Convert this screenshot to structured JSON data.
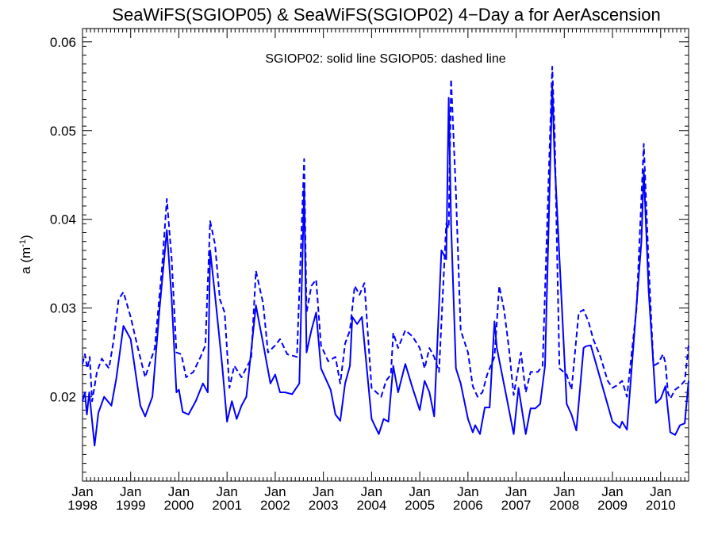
{
  "chart_data": {
    "type": "line",
    "title": "SeaWiFS(SGIOP05) & SeaWiFS(SGIOP02) 4−Day a for AerAscension",
    "ylabel": "a (m",
    "ylabel_sup": "-1",
    "ylabel_close": ")",
    "legend_text": "SGIOP02: solid line   SGIOP05: dashed line",
    "xlim": [
      1998.0,
      2010.58
    ],
    "ylim": [
      0.0105,
      0.0615
    ],
    "yticks": [
      0.02,
      0.03,
      0.04,
      0.05,
      0.06
    ],
    "ytick_labels": [
      "0.02",
      "0.03",
      "0.04",
      "0.05",
      "0.06"
    ],
    "xticks": [
      {
        "value": 1998,
        "month": "Jan",
        "year": "1998"
      },
      {
        "value": 1999,
        "month": "Jan",
        "year": "1999"
      },
      {
        "value": 2000,
        "month": "Jan",
        "year": "2000"
      },
      {
        "value": 2001,
        "month": "Jan",
        "year": "2001"
      },
      {
        "value": 2002,
        "month": "Jan",
        "year": "2002"
      },
      {
        "value": 2003,
        "month": "Jan",
        "year": "2003"
      },
      {
        "value": 2004,
        "month": "Jan",
        "year": "2004"
      },
      {
        "value": 2005,
        "month": "Jan",
        "year": "2005"
      },
      {
        "value": 2006,
        "month": "Jan",
        "year": "2006"
      },
      {
        "value": 2007,
        "month": "Jan",
        "year": "2007"
      },
      {
        "value": 2008,
        "month": "Jan",
        "year": "2008"
      },
      {
        "value": 2009,
        "month": "Jan",
        "year": "2009"
      },
      {
        "value": 2010,
        "month": "Jan",
        "year": "2010"
      }
    ],
    "line_color": "#0000ff",
    "series": [
      {
        "style": "solid",
        "x": [
          1998.0,
          1998.05,
          1998.09,
          1998.14,
          1998.25,
          1998.33,
          1998.45,
          1998.6,
          1998.7,
          1998.85,
          1999.0,
          1999.2,
          1999.3,
          1999.45,
          1999.6,
          1999.75,
          1999.85,
          1999.95,
          2000.0,
          2000.08,
          2000.2,
          2000.35,
          2000.5,
          2000.6,
          2000.65,
          2000.75,
          2000.9,
          2001.0,
          2001.1,
          2001.2,
          2001.3,
          2001.4,
          2001.6,
          2001.75,
          2001.9,
          2002.0,
          2002.1,
          2002.2,
          2002.35,
          2002.5,
          2002.6,
          2002.65,
          2002.75,
          2002.85,
          2002.95,
          2003.15,
          2003.25,
          2003.35,
          2003.45,
          2003.55,
          2003.6,
          2003.7,
          2003.8,
          2004.0,
          2004.15,
          2004.25,
          2004.35,
          2004.45,
          2004.55,
          2004.7,
          2004.85,
          2005.0,
          2005.1,
          2005.2,
          2005.3,
          2005.45,
          2005.55,
          2005.6,
          2005.65,
          2005.75,
          2005.85,
          2006.0,
          2006.1,
          2006.15,
          2006.25,
          2006.35,
          2006.45,
          2006.55,
          2006.6,
          2006.8,
          2006.95,
          2007.05,
          2007.2,
          2007.3,
          2007.4,
          2007.5,
          2007.6,
          2007.75,
          2007.8,
          2008.05,
          2008.15,
          2008.25,
          2008.4,
          2008.45,
          2008.55,
          2009.0,
          2009.15,
          2009.2,
          2009.3,
          2009.6,
          2009.65,
          2009.75,
          2009.9,
          2010.0,
          2010.1,
          2010.2,
          2010.3,
          2010.4,
          2010.5,
          2010.58
        ],
        "y": [
          0.0195,
          0.0205,
          0.018,
          0.0205,
          0.0145,
          0.0182,
          0.02,
          0.019,
          0.022,
          0.028,
          0.0265,
          0.019,
          0.0178,
          0.02,
          0.03,
          0.0388,
          0.031,
          0.0205,
          0.0208,
          0.0183,
          0.018,
          0.0195,
          0.0215,
          0.0205,
          0.0365,
          0.0315,
          0.0235,
          0.0172,
          0.0195,
          0.0175,
          0.019,
          0.02,
          0.0303,
          0.026,
          0.0215,
          0.0225,
          0.0205,
          0.0205,
          0.0203,
          0.0215,
          0.0435,
          0.025,
          0.0275,
          0.0295,
          0.0232,
          0.0208,
          0.018,
          0.0173,
          0.0215,
          0.0235,
          0.029,
          0.0282,
          0.029,
          0.0175,
          0.0158,
          0.0175,
          0.0172,
          0.0235,
          0.0205,
          0.0237,
          0.021,
          0.0185,
          0.0218,
          0.0205,
          0.0178,
          0.0365,
          0.0355,
          0.0537,
          0.0395,
          0.0232,
          0.0215,
          0.0175,
          0.016,
          0.0168,
          0.0158,
          0.0188,
          0.0188,
          0.0285,
          0.0255,
          0.02,
          0.0158,
          0.021,
          0.0158,
          0.0187,
          0.0187,
          0.0192,
          0.0235,
          0.055,
          0.0465,
          0.0192,
          0.018,
          0.0162,
          0.0255,
          0.0257,
          0.0258,
          0.0172,
          0.0165,
          0.0172,
          0.0163,
          0.0375,
          0.0455,
          0.032,
          0.0193,
          0.0198,
          0.0212,
          0.016,
          0.0157,
          0.0168,
          0.017,
          0.0218
        ]
      },
      {
        "style": "dashed",
        "x": [
          1998.0,
          1998.05,
          1998.1,
          1998.15,
          1998.2,
          1998.3,
          1998.4,
          1998.55,
          1998.65,
          1998.75,
          1998.85,
          1999.0,
          1999.15,
          1999.3,
          1999.5,
          1999.65,
          1999.75,
          1999.85,
          1999.95,
          2000.05,
          2000.15,
          2000.3,
          2000.45,
          2000.55,
          2000.65,
          2000.75,
          2000.85,
          2000.95,
          2001.05,
          2001.15,
          2001.3,
          2001.5,
          2001.6,
          2001.75,
          2001.85,
          2002.0,
          2002.1,
          2002.25,
          2002.45,
          2002.6,
          2002.65,
          2002.75,
          2002.85,
          2002.95,
          2003.1,
          2003.25,
          2003.35,
          2003.45,
          2003.55,
          2003.65,
          2003.75,
          2003.85,
          2004.0,
          2004.1,
          2004.2,
          2004.3,
          2004.4,
          2004.45,
          2004.55,
          2004.7,
          2004.85,
          2005.0,
          2005.1,
          2005.2,
          2005.3,
          2005.4,
          2005.55,
          2005.6,
          2005.65,
          2005.75,
          2005.85,
          2006.0,
          2006.1,
          2006.2,
          2006.3,
          2006.4,
          2006.55,
          2006.65,
          2006.75,
          2006.85,
          2006.95,
          2007.1,
          2007.2,
          2007.3,
          2007.45,
          2007.55,
          2007.75,
          2007.8,
          2007.9,
          2008.05,
          2008.15,
          2008.3,
          2008.4,
          2008.5,
          2008.6,
          2008.75,
          2008.9,
          2009.0,
          2009.1,
          2009.2,
          2009.3,
          2009.5,
          2009.65,
          2009.75,
          2009.85,
          2009.95,
          2010.05,
          2010.1,
          2010.15,
          2010.2,
          2010.3,
          2010.4,
          2010.5,
          2010.58
        ],
        "y": [
          0.0237,
          0.0248,
          0.0232,
          0.0245,
          0.0195,
          0.0228,
          0.0243,
          0.0232,
          0.0265,
          0.031,
          0.0318,
          0.029,
          0.0255,
          0.0222,
          0.0255,
          0.0345,
          0.0423,
          0.0355,
          0.025,
          0.0248,
          0.0222,
          0.0228,
          0.0245,
          0.0258,
          0.0398,
          0.0372,
          0.031,
          0.0295,
          0.021,
          0.0235,
          0.0222,
          0.0243,
          0.0342,
          0.0305,
          0.025,
          0.0258,
          0.0265,
          0.0248,
          0.0245,
          0.0468,
          0.0295,
          0.0325,
          0.0332,
          0.0258,
          0.024,
          0.0245,
          0.0215,
          0.026,
          0.0275,
          0.0325,
          0.0315,
          0.0328,
          0.021,
          0.0205,
          0.02,
          0.0218,
          0.0225,
          0.0272,
          0.0255,
          0.0275,
          0.0268,
          0.0255,
          0.0232,
          0.0255,
          0.0245,
          0.0228,
          0.0395,
          0.039,
          0.0558,
          0.043,
          0.0275,
          0.025,
          0.0212,
          0.02,
          0.0205,
          0.0225,
          0.0245,
          0.0325,
          0.0298,
          0.0255,
          0.0202,
          0.025,
          0.0205,
          0.0228,
          0.0228,
          0.0235,
          0.0572,
          0.0495,
          0.0232,
          0.0225,
          0.0208,
          0.0295,
          0.0298,
          0.0285,
          0.0265,
          0.0245,
          0.0218,
          0.021,
          0.0213,
          0.0218,
          0.02,
          0.03,
          0.0485,
          0.035,
          0.0235,
          0.0238,
          0.0248,
          0.0238,
          0.0205,
          0.0198,
          0.0208,
          0.0212,
          0.0218,
          0.0258
        ]
      }
    ]
  }
}
